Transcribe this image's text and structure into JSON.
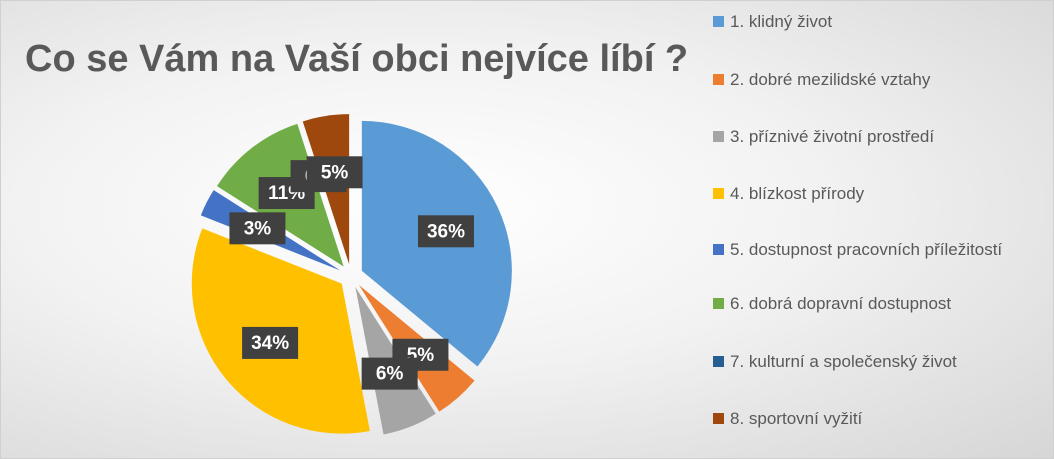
{
  "chart_data": {
    "type": "pie",
    "title": "Co se Vám na Vaší obci nejvíce líbí ?",
    "categories": [
      "1. klidný život",
      "2. dobré mezilidské vztahy",
      "3. příznivé životní prostředí",
      "4. blízkost přírody",
      "5. dostupnost pracovních příležitostí",
      "6. dobrá dopravní dostupnost",
      "7. kulturní a společenský život",
      "8. sportovní vyžití"
    ],
    "values": [
      36,
      5,
      6,
      34,
      3,
      11,
      0,
      5
    ],
    "value_labels": [
      "36%",
      "5%",
      "6%",
      "34%",
      "3%",
      "11%",
      "0%",
      "5%"
    ],
    "colors": [
      "#5b9bd5",
      "#ed7d31",
      "#a5a5a5",
      "#ffc000",
      "#4472c4",
      "#70ad47",
      "#255e91",
      "#9e480e"
    ]
  }
}
